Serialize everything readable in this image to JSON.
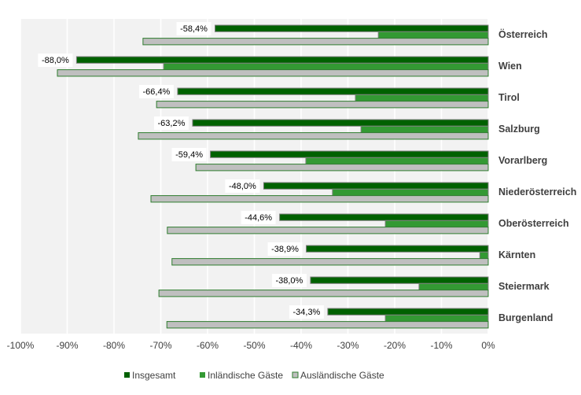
{
  "chart_data": {
    "type": "bar",
    "orientation": "horizontal",
    "title": "",
    "xlabel": "",
    "ylabel": "",
    "xlim": [
      -100,
      0
    ],
    "xticks": [
      "-100%",
      "-90%",
      "-80%",
      "-70%",
      "-60%",
      "-50%",
      "-40%",
      "-30%",
      "-20%",
      "-10%",
      "0%"
    ],
    "xtick_values": [
      -100,
      -90,
      -80,
      -70,
      -60,
      -50,
      -40,
      -30,
      -20,
      -10,
      0
    ],
    "grid": true,
    "legend_position": "bottom",
    "categories": [
      "Österreich",
      "Wien",
      "Tirol",
      "Salzburg",
      "Vorarlberg",
      "Niederösterreich",
      "Oberösterreich",
      "Kärnten",
      "Steiermark",
      "Burgenland"
    ],
    "series": [
      {
        "name": "Insgesamt",
        "color": "#006100",
        "values": [
          -58.4,
          -88.0,
          -66.4,
          -63.2,
          -59.4,
          -48.0,
          -44.6,
          -38.9,
          -38.0,
          -34.3
        ],
        "labels": [
          "-58,4%",
          "-88,0%",
          "-66,4%",
          "-63,2%",
          "-59,4%",
          "-48,0%",
          "-44,6%",
          "-38,9%",
          "-38,0%",
          "-34,3%"
        ]
      },
      {
        "name": "Inländische Gäste",
        "color": "#339933",
        "values": [
          -23.5,
          -69.4,
          -28.4,
          -27.2,
          -39.0,
          -33.3,
          -22.0,
          -1.8,
          -14.8,
          -22.0
        ]
      },
      {
        "name": "Ausländische Gäste",
        "color": "#bfbfbf",
        "values": [
          -73.8,
          -92.1,
          -70.9,
          -74.8,
          -62.5,
          -72.1,
          -68.6,
          -67.6,
          -70.4,
          -68.7
        ]
      }
    ]
  }
}
